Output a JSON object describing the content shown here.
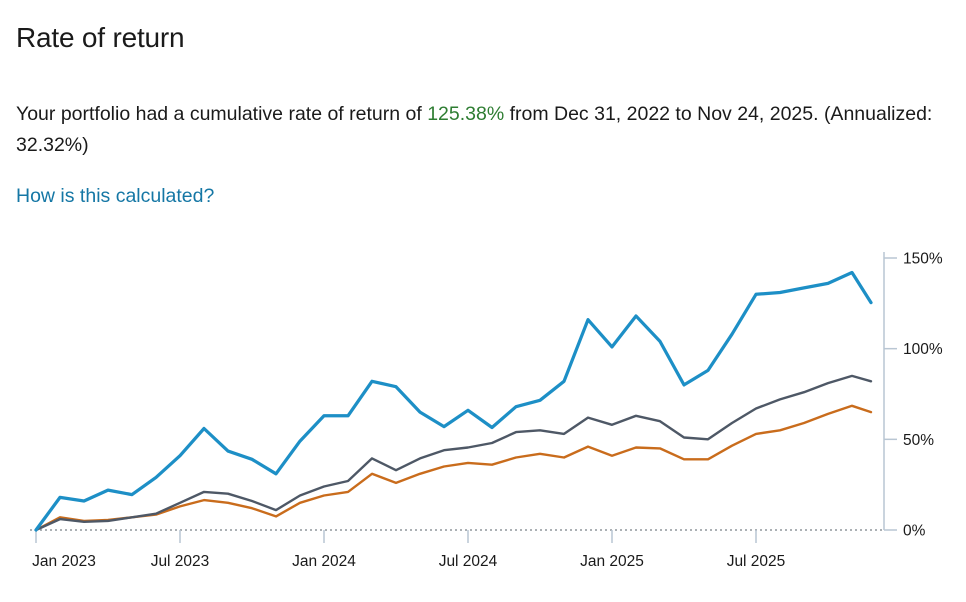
{
  "header": {
    "title": "Rate of return"
  },
  "summary": {
    "prefix": "Your portfolio had a cumulative rate of return of ",
    "cumulative_return": "125.38%",
    "suffix": " from Dec 31, 2022 to Nov 24, 2025. (Annualized: 32.32%)",
    "value_color": "#2e7d32"
  },
  "links": {
    "how_calculated": "How is this calculated?"
  },
  "colors": {
    "axis": "#b9c6d3",
    "zero_baseline": "#8f969c",
    "text": "#1a1a1a",
    "link": "#1577a5"
  },
  "chart_data": {
    "type": "line",
    "title": "",
    "xlabel": "",
    "ylabel": "",
    "ylim": [
      0,
      150
    ],
    "yaxis_side": "right",
    "grid": false,
    "legend": "none",
    "zero_baseline_style": "dotted",
    "y_ticks": [
      0,
      50,
      100,
      150
    ],
    "y_tick_labels": [
      "0%",
      "50%",
      "100%",
      "150%"
    ],
    "x_tick_labels": [
      "Jan 2023",
      "Jul 2023",
      "Jan 2024",
      "Jul 2024",
      "Jan 2025",
      "Jul 2025"
    ],
    "x_tick_indices": [
      0,
      6,
      12,
      18,
      24,
      30
    ],
    "x": [
      "Jan 2023",
      "Feb 2023",
      "Mar 2023",
      "Apr 2023",
      "May 2023",
      "Jun 2023",
      "Jul 2023",
      "Aug 2023",
      "Sep 2023",
      "Oct 2023",
      "Nov 2023",
      "Dec 2023",
      "Jan 2024",
      "Feb 2024",
      "Mar 2024",
      "Apr 2024",
      "May 2024",
      "Jun 2024",
      "Jul 2024",
      "Aug 2024",
      "Sep 2024",
      "Oct 2024",
      "Nov 2024",
      "Dec 2024",
      "Jan 2025",
      "Feb 2025",
      "Mar 2025",
      "Apr 2025",
      "May 2025",
      "Jun 2025",
      "Jul 2025",
      "Aug 2025",
      "Sep 2025",
      "Oct 2025",
      "Nov 2025",
      "Nov 24, 2025"
    ],
    "unit": "percent cumulative return",
    "series": [
      {
        "name": "portfolio",
        "color": "#1d8fc6",
        "values": [
          0,
          18,
          16,
          22,
          19.5,
          29,
          41,
          56,
          43.5,
          39,
          31,
          49,
          63,
          63,
          82,
          79,
          65,
          57,
          66,
          56.5,
          68,
          71.5,
          82,
          116,
          101,
          118,
          104,
          80,
          88,
          108,
          130,
          131,
          133.5,
          136,
          142,
          125.38
        ]
      },
      {
        "name": "unlabeled-gray",
        "color": "#4e5866",
        "values": [
          0,
          6,
          4.5,
          5,
          7,
          9,
          15,
          21,
          20,
          16,
          11,
          19,
          24,
          27,
          39.5,
          33,
          39.5,
          44,
          45.5,
          48,
          54,
          55,
          53,
          62,
          58,
          63,
          60,
          51,
          50,
          59,
          67,
          72,
          76,
          81,
          85,
          82
        ]
      },
      {
        "name": "unlabeled-orange",
        "color": "#c96c1c",
        "values": [
          0,
          7,
          5,
          5.5,
          7,
          8.5,
          13,
          16.5,
          15,
          12,
          7.5,
          15,
          19,
          21,
          31,
          26,
          31,
          35,
          37,
          36,
          40,
          42,
          40,
          46,
          41,
          45.5,
          45,
          39,
          39,
          46.5,
          53,
          55,
          59,
          64,
          68.5,
          65
        ]
      }
    ]
  }
}
